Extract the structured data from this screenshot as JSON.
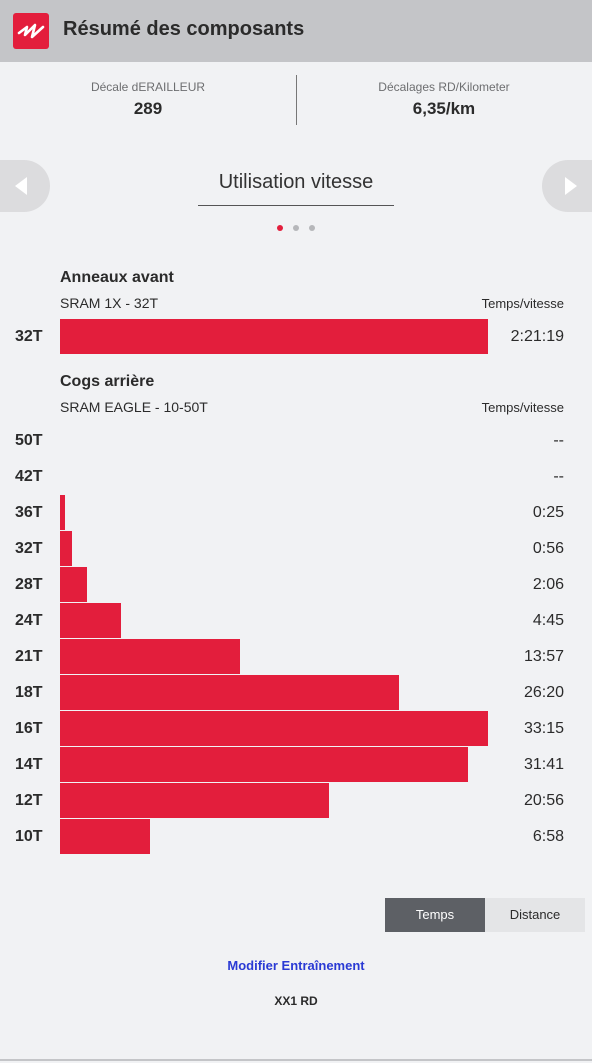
{
  "header": {
    "title": "Résumé des composants",
    "logo_icon": "brand-logo-icon"
  },
  "stats": [
    {
      "label": "Décale dERAILLEUR",
      "value": "289"
    },
    {
      "label": "Décalages RD/Kilometer",
      "value": "6,35/km"
    }
  ],
  "carousel": {
    "title": "Utilisation vitesse",
    "page_count": 3,
    "active_page": 0,
    "prev_icon": "triangle-left-icon",
    "next_icon": "triangle-right-icon"
  },
  "colors": {
    "accent": "#e31e3c",
    "dot_inactive": "#b6b7ba",
    "link": "#2a3ad4",
    "header_bg": "#c4c5c8"
  },
  "front": {
    "title": "Anneaux avant",
    "subtitle": "SRAM 1X - 32T",
    "column_label": "Temps/vitesse",
    "rows": [
      {
        "gear": "32T",
        "time": "2:21:19",
        "seconds": 8479
      }
    ]
  },
  "rear": {
    "title": "Cogs arrière",
    "subtitle": "SRAM EAGLE - 10-50T",
    "column_label": "Temps/vitesse",
    "rows": [
      {
        "gear": "50T",
        "time": "--",
        "seconds": 0
      },
      {
        "gear": "42T",
        "time": "--",
        "seconds": 0
      },
      {
        "gear": "36T",
        "time": "0:25",
        "seconds": 25
      },
      {
        "gear": "32T",
        "time": "0:56",
        "seconds": 56
      },
      {
        "gear": "28T",
        "time": "2:06",
        "seconds": 126
      },
      {
        "gear": "24T",
        "time": "4:45",
        "seconds": 285
      },
      {
        "gear": "21T",
        "time": "13:57",
        "seconds": 837
      },
      {
        "gear": "18T",
        "time": "26:20",
        "seconds": 1580
      },
      {
        "gear": "16T",
        "time": "33:15",
        "seconds": 1995
      },
      {
        "gear": "14T",
        "time": "31:41",
        "seconds": 1901
      },
      {
        "gear": "12T",
        "time": "20:56",
        "seconds": 1256
      },
      {
        "gear": "10T",
        "time": "6:58",
        "seconds": 418
      }
    ]
  },
  "toggle": {
    "options": [
      "Temps",
      "Distance"
    ],
    "selected": "Temps"
  },
  "footer": {
    "modify_label": "Modifier Entraînement",
    "rd_label": "XX1 RD"
  }
}
